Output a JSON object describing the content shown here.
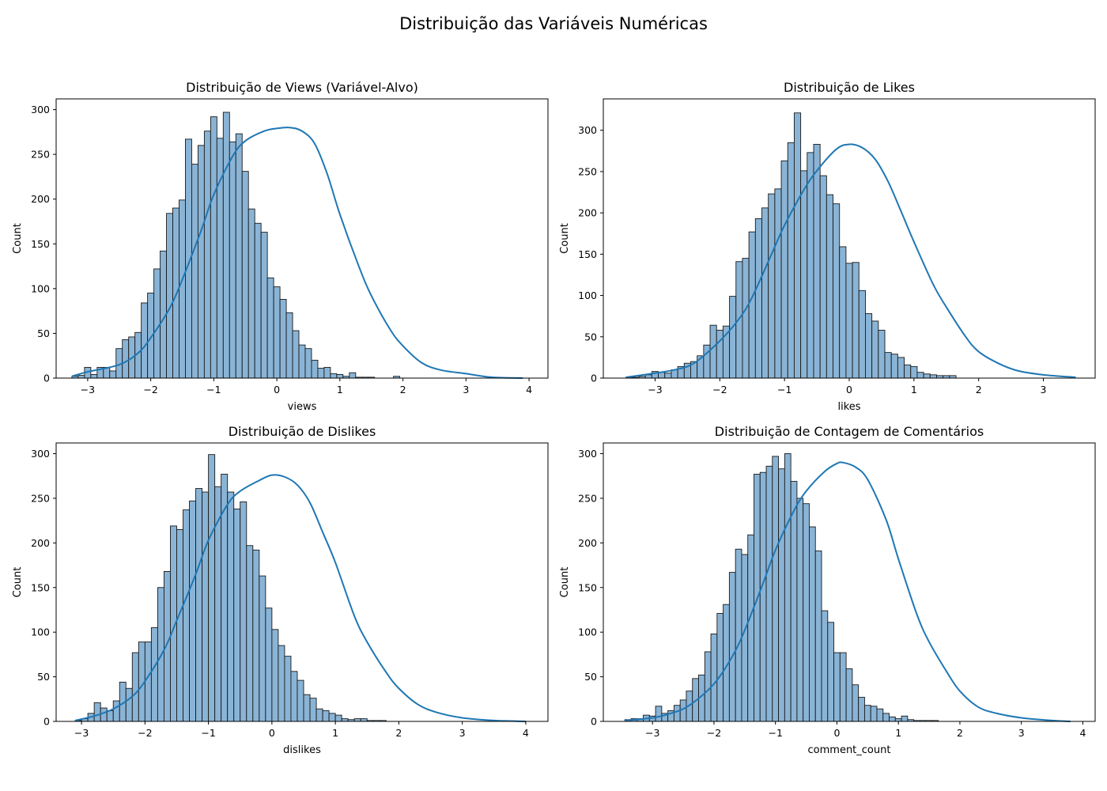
{
  "figure": {
    "suptitle": "Distribuição das Variáveis Numéricas"
  },
  "colors": {
    "bar_fill": "#8ab4d6",
    "bar_edge": "#1a1a1a",
    "kde_line": "#1f77b4"
  },
  "chart_data": [
    {
      "type": "histogram",
      "title": "Distribuição de Views (Variável-Alvo)",
      "xlabel": "views",
      "ylabel": "Count",
      "xlim": [
        -3.5,
        4.3
      ],
      "ylim": [
        0,
        312
      ],
      "xticks": [
        -3,
        -2,
        -1,
        0,
        1,
        2,
        3,
        4
      ],
      "yticks": [
        0,
        50,
        100,
        150,
        200,
        250,
        300
      ],
      "bin_start": -3.25,
      "bin_width": 0.1,
      "values": [
        2,
        3,
        12,
        4,
        12,
        12,
        8,
        33,
        43,
        46,
        51,
        84,
        95,
        122,
        142,
        184,
        190,
        199,
        267,
        239,
        260,
        276,
        292,
        268,
        297,
        264,
        273,
        231,
        189,
        173,
        163,
        112,
        102,
        88,
        73,
        53,
        37,
        33,
        20,
        11,
        12,
        5,
        4,
        2,
        6,
        1,
        1,
        1,
        0,
        0,
        0,
        2
      ],
      "kde_x": [
        -3.25,
        -3.0,
        -2.5,
        -2.2,
        -2.0,
        -1.7,
        -1.5,
        -1.2,
        -1.0,
        -0.7,
        -0.5,
        -0.2,
        0.0,
        0.2,
        0.4,
        0.6,
        0.8,
        1.0,
        1.3,
        1.5,
        1.8,
        2.0,
        2.3,
        2.6,
        3.0,
        3.4,
        3.9
      ],
      "kde_y": [
        2,
        7,
        15,
        28,
        45,
        78,
        110,
        165,
        205,
        248,
        265,
        276,
        279,
        280,
        276,
        262,
        228,
        183,
        125,
        92,
        54,
        36,
        17,
        9,
        5,
        1,
        0
      ]
    },
    {
      "type": "histogram",
      "title": "Distribuição de Likes",
      "xlabel": "likes",
      "ylabel": "Count",
      "xlim": [
        -3.8,
        3.8
      ],
      "ylim": [
        0,
        338
      ],
      "xticks": [
        -3,
        -2,
        -1,
        0,
        1,
        2,
        3
      ],
      "yticks": [
        0,
        50,
        100,
        150,
        200,
        250,
        300
      ],
      "bin_start": -3.45,
      "bin_width": 0.1,
      "values": [
        1,
        1,
        2,
        4,
        8,
        7,
        6,
        10,
        14,
        18,
        20,
        27,
        40,
        64,
        58,
        63,
        99,
        141,
        145,
        177,
        193,
        206,
        223,
        229,
        263,
        285,
        321,
        251,
        273,
        283,
        245,
        222,
        211,
        159,
        139,
        140,
        106,
        78,
        69,
        58,
        31,
        29,
        25,
        16,
        14,
        7,
        5,
        4,
        3,
        3,
        3
      ],
      "kde_x": [
        -3.45,
        -3.0,
        -2.7,
        -2.4,
        -2.0,
        -1.7,
        -1.5,
        -1.2,
        -1.0,
        -0.7,
        -0.5,
        -0.2,
        0.0,
        0.2,
        0.4,
        0.6,
        0.8,
        1.0,
        1.3,
        1.5,
        1.8,
        2.0,
        2.3,
        2.6,
        3.0,
        3.5
      ],
      "kde_y": [
        1,
        6,
        10,
        18,
        45,
        72,
        98,
        150,
        185,
        228,
        251,
        277,
        283,
        279,
        265,
        238,
        202,
        165,
        113,
        86,
        50,
        32,
        18,
        9,
        4,
        1
      ]
    },
    {
      "type": "histogram",
      "title": "Distribuição de Dislikes",
      "xlabel": "dislikes",
      "ylabel": "Count",
      "xlim": [
        -3.4,
        4.35
      ],
      "ylim": [
        0,
        312
      ],
      "xticks": [
        -3,
        -2,
        -1,
        0,
        1,
        2,
        3,
        4
      ],
      "yticks": [
        0,
        50,
        100,
        150,
        200,
        250,
        300
      ],
      "bin_start": -3.1,
      "bin_width": 0.1,
      "values": [
        1,
        3,
        9,
        21,
        15,
        12,
        23,
        44,
        37,
        77,
        89,
        89,
        105,
        150,
        168,
        219,
        215,
        237,
        247,
        261,
        257,
        299,
        263,
        277,
        257,
        238,
        246,
        197,
        192,
        163,
        127,
        103,
        85,
        73,
        56,
        46,
        30,
        26,
        14,
        12,
        9,
        7,
        3,
        2,
        3,
        3,
        1,
        1,
        1,
        0,
        0
      ],
      "kde_x": [
        -3.1,
        -2.8,
        -2.5,
        -2.2,
        -2.0,
        -1.7,
        -1.5,
        -1.2,
        -1.0,
        -0.7,
        -0.5,
        -0.2,
        0.0,
        0.2,
        0.4,
        0.6,
        0.8,
        1.0,
        1.3,
        1.5,
        1.8,
        2.0,
        2.3,
        2.6,
        3.0,
        3.5,
        4.0
      ],
      "kde_y": [
        1,
        6,
        14,
        28,
        45,
        80,
        113,
        165,
        203,
        243,
        258,
        270,
        276,
        274,
        265,
        245,
        212,
        178,
        118,
        89,
        55,
        37,
        19,
        10,
        4,
        1,
        0
      ]
    },
    {
      "type": "histogram",
      "title": "Distribuição de Contagem de Comentários",
      "xlabel": "comment_count",
      "ylabel": "Count",
      "xlim": [
        -3.8,
        4.2
      ],
      "ylim": [
        0,
        312
      ],
      "xticks": [
        -3,
        -2,
        -1,
        0,
        1,
        2,
        3,
        4
      ],
      "yticks": [
        0,
        50,
        100,
        150,
        200,
        250,
        300
      ],
      "bin_start": -3.45,
      "bin_width": 0.1,
      "values": [
        2,
        3,
        3,
        7,
        6,
        17,
        9,
        12,
        18,
        24,
        34,
        48,
        52,
        78,
        98,
        121,
        131,
        167,
        193,
        187,
        209,
        277,
        279,
        286,
        297,
        283,
        300,
        269,
        250,
        244,
        218,
        191,
        124,
        111,
        77,
        77,
        59,
        41,
        27,
        18,
        17,
        14,
        9,
        5,
        3,
        6,
        2,
        1,
        1,
        1,
        1,
        0,
        0
      ],
      "kde_x": [
        -3.45,
        -3.0,
        -2.7,
        -2.4,
        -2.0,
        -1.7,
        -1.5,
        -1.2,
        -1.0,
        -0.7,
        -0.5,
        -0.2,
        0.0,
        0.1,
        0.3,
        0.5,
        0.8,
        1.0,
        1.3,
        1.5,
        1.8,
        2.0,
        2.3,
        2.6,
        3.0,
        3.5,
        3.8
      ],
      "kde_y": [
        1,
        4,
        9,
        18,
        42,
        73,
        102,
        155,
        192,
        236,
        258,
        280,
        289,
        290,
        285,
        271,
        226,
        182,
        120,
        89,
        54,
        34,
        16,
        9,
        4,
        1,
        0
      ]
    }
  ]
}
